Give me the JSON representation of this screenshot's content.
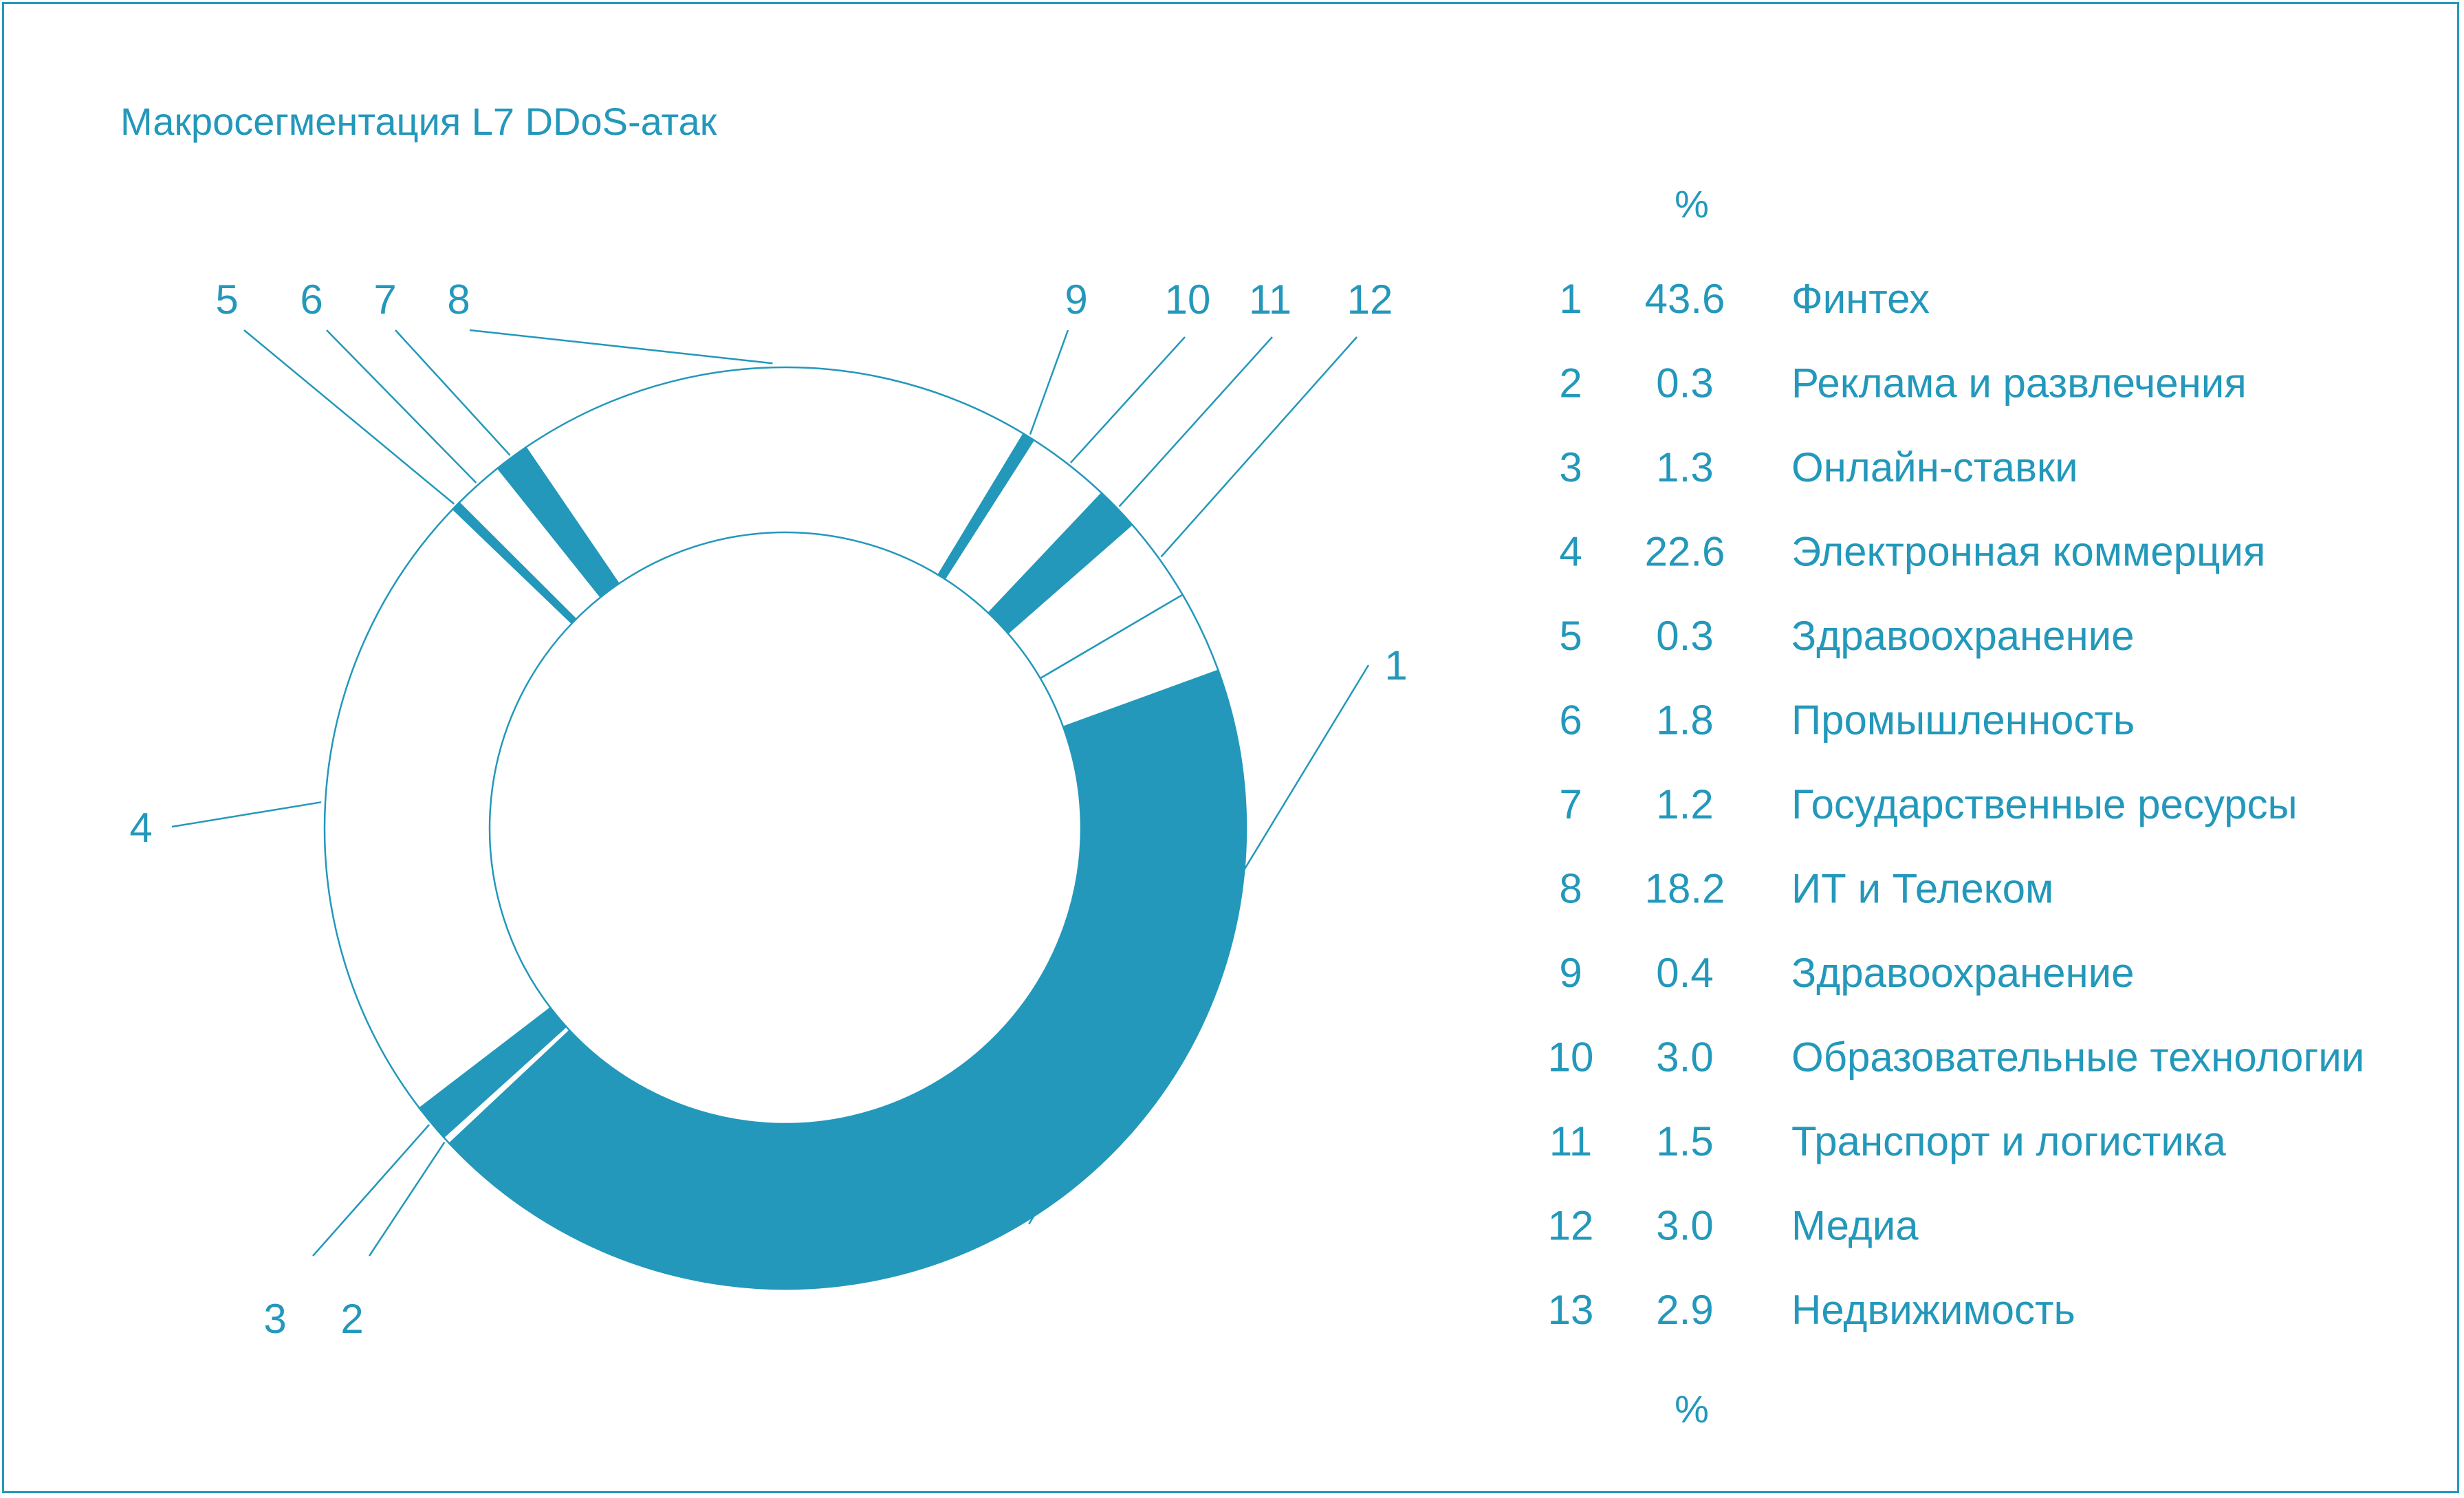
{
  "colors": {
    "accent": "#2398bb",
    "background": "#ffffff"
  },
  "chart_data": {
    "type": "pie",
    "variant": "donut",
    "title": "Макросегментация L7 DDoS-атак",
    "table_header_top": "%",
    "table_header_bottom": "%",
    "slices": [
      {
        "id": "1",
        "value": 43.6,
        "label": "Финтех",
        "filled": true
      },
      {
        "id": "2",
        "value": 0.3,
        "label": "Реклама и развлечения",
        "filled": false
      },
      {
        "id": "3",
        "value": 1.3,
        "label": "Онлайн-ставки",
        "filled": true
      },
      {
        "id": "4",
        "value": 22.6,
        "label": "Электронная коммерция",
        "filled": false
      },
      {
        "id": "5",
        "value": 0.3,
        "label": "Здравоохранение",
        "filled": true
      },
      {
        "id": "6",
        "value": 1.8,
        "label": "Промышленность",
        "filled": false
      },
      {
        "id": "7",
        "value": 1.2,
        "label": "Государственные ресурсы",
        "filled": true
      },
      {
        "id": "8",
        "value": 18.2,
        "label": "ИТ и Телеком",
        "filled": false
      },
      {
        "id": "9",
        "value": 0.4,
        "label": "Здравоохранение",
        "filled": true
      },
      {
        "id": "10",
        "value": 3.0,
        "label": "Образовательные технологии",
        "filled": false
      },
      {
        "id": "11",
        "value": 1.5,
        "label": "Транспорт и логистика",
        "filled": true
      },
      {
        "id": "12",
        "value": 3.0,
        "label": "Медиа",
        "filled": false
      },
      {
        "id": "13",
        "value": 2.9,
        "label": "Недвижимость",
        "filled": false
      }
    ],
    "value_format": "1 decimal"
  }
}
